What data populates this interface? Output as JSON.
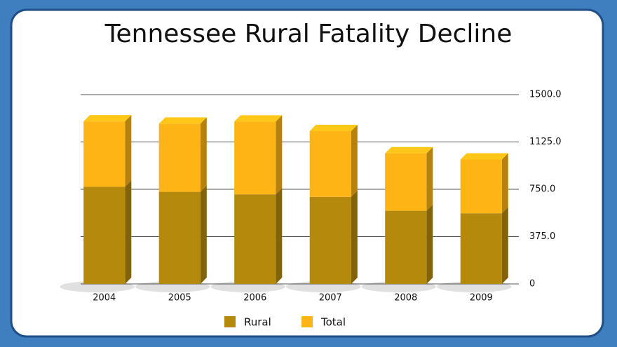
{
  "chart_data": {
    "type": "bar",
    "stacked": true,
    "title": "Tennessee Rural Fatality Decline",
    "categories": [
      "2004",
      "2005",
      "2006",
      "2007",
      "2008",
      "2009"
    ],
    "series": [
      {
        "name": "Rural",
        "color": "#b5890c",
        "values": [
          770,
          730,
          710,
          690,
          580,
          560
        ]
      },
      {
        "name": "Total",
        "color": "#fdb515",
        "values": [
          518,
          540,
          577,
          521,
          455,
          426
        ]
      }
    ],
    "ylim": [
      0,
      1500
    ],
    "yticks": [
      0,
      {
        "value": 375,
        "label": "375.0"
      },
      {
        "value": 750,
        "label": "750.0"
      },
      {
        "value": 1125,
        "label": "1125.0"
      },
      {
        "value": 1500,
        "label": "1500.0"
      }
    ],
    "grid": true,
    "legend": "bottom"
  }
}
